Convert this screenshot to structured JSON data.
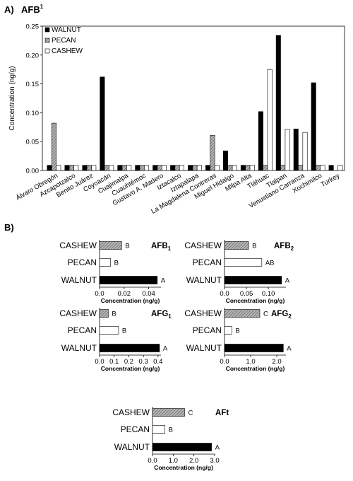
{
  "panel_a": {
    "tag": "A)",
    "title": "AFB",
    "title_sup": "1"
  },
  "panel_b": {
    "tag": "B)"
  },
  "colors": {
    "walnut": "#000000",
    "pecan": "#9a9a9a",
    "cashew": "#ffffff",
    "stroke": "#000000"
  },
  "chart_data": [
    {
      "id": "A",
      "type": "bar",
      "title": "AFB1",
      "ylabel": "Concentration (ng/g)",
      "xlabel": "",
      "ylim": [
        0,
        0.25
      ],
      "yticks": [
        "0.00",
        "0.05",
        "0.10",
        "0.15",
        "0.20",
        "0.25"
      ],
      "legend_position": "top-left",
      "grid": false,
      "categories": [
        "Álvaro Obregón",
        "Azcapotzalco",
        "Benito Juárez",
        "Coyoacán",
        "Cuajimalpa",
        "Cuauhtémoc",
        "Gustavo A. Madero",
        "Iztacalco",
        "Iztapalapa",
        "La Magdalena Contreras",
        "Miguel Hidalgo",
        "Milpa Alta",
        "Tláhuac",
        "Tlalpan",
        "Venustiano Carranza",
        "Xochimilco",
        "Turkey"
      ],
      "series": [
        {
          "name": "WALNUT",
          "pattern": "solid",
          "values": [
            0.009,
            0.009,
            0.009,
            0.162,
            0.009,
            0.009,
            0.009,
            0.009,
            0.009,
            0.009,
            0.034,
            0.009,
            0.102,
            0.234,
            0.072,
            0.152,
            0.009
          ]
        },
        {
          "name": "PECAN",
          "pattern": "hatch",
          "values": [
            0.082,
            0.009,
            0.009,
            0.009,
            0.009,
            0.009,
            0.009,
            0.009,
            0.009,
            0.061,
            0.009,
            0.009,
            0.009,
            0.009,
            0.009,
            0.009,
            null
          ]
        },
        {
          "name": "CASHEW",
          "pattern": "white",
          "values": [
            0.009,
            0.009,
            0.009,
            0.009,
            0.009,
            0.009,
            0.009,
            0.009,
            0.009,
            0.009,
            0.009,
            0.009,
            0.175,
            0.071,
            0.066,
            0.009,
            0.009
          ]
        }
      ]
    },
    {
      "id": "B1",
      "type": "bar",
      "orientation": "horizontal",
      "subtitle": "AFB",
      "subtitle_sub": "1",
      "xlabel": "Concentration (ng/g)",
      "xlim": [
        0,
        0.05
      ],
      "xticks": [
        "0.0",
        "0.02",
        "0.04"
      ],
      "categories": [
        "CASHEW",
        "PECAN",
        "WALNUT"
      ],
      "values": [
        0.018,
        0.009,
        0.047
      ],
      "letters": [
        "B",
        "B",
        "A"
      ]
    },
    {
      "id": "B2",
      "type": "bar",
      "orientation": "horizontal",
      "subtitle": "AFB",
      "subtitle_sub": "2",
      "xlabel": "Concentration (ng/g)",
      "xlim": [
        0,
        0.14
      ],
      "xticks": [
        "0.0",
        "0.05",
        "0.10"
      ],
      "categories": [
        "CASHEW",
        "PECAN",
        "WALNUT"
      ],
      "values": [
        0.055,
        0.085,
        0.13
      ],
      "letters": [
        "B",
        "AB",
        "A"
      ]
    },
    {
      "id": "G1",
      "type": "bar",
      "orientation": "horizontal",
      "subtitle": "AFG",
      "subtitle_sub": "1",
      "xlabel": "Concentration (ng/g)",
      "xlim": [
        0,
        0.42
      ],
      "xticks": [
        "0.0",
        "0.1",
        "0.2",
        "0.3",
        "0.4"
      ],
      "categories": [
        "CASHEW",
        "PECAN",
        "WALNUT"
      ],
      "values": [
        0.06,
        0.13,
        0.41
      ],
      "letters": [
        "B",
        "B",
        "A"
      ]
    },
    {
      "id": "G2",
      "type": "bar",
      "orientation": "horizontal",
      "subtitle": "AFG",
      "subtitle_sub": "2",
      "xlabel": "Concentration (ng/g)",
      "xlim": [
        0,
        2.35
      ],
      "xticks": [
        "0.0",
        "1.0",
        "2.0"
      ],
      "categories": [
        "CASHEW",
        "PECAN",
        "WALNUT"
      ],
      "values": [
        1.35,
        0.28,
        2.25
      ],
      "letters": [
        "C",
        "B",
        "A"
      ]
    },
    {
      "id": "T",
      "type": "bar",
      "orientation": "horizontal",
      "subtitle": "AFt",
      "subtitle_sub": "",
      "xlabel": "Concentration (ng/g)",
      "xlim": [
        0,
        3.0
      ],
      "xticks": [
        "0.0",
        "1.0",
        "2.0",
        "3.0"
      ],
      "categories": [
        "CASHEW",
        "PECAN",
        "WALNUT"
      ],
      "values": [
        1.55,
        0.6,
        2.85
      ],
      "letters": [
        "C",
        "B",
        "A"
      ]
    }
  ]
}
